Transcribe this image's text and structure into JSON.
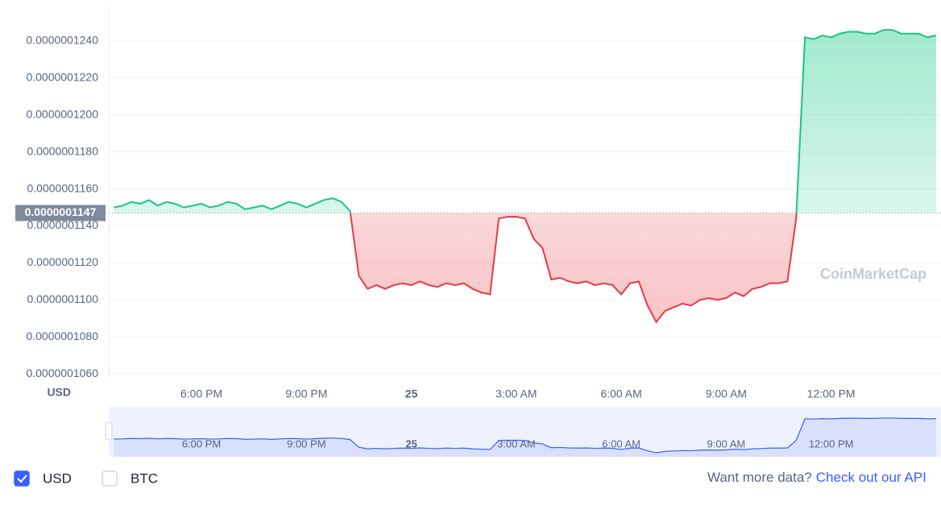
{
  "chart_data": {
    "type": "line",
    "y_axis_unit": "USD",
    "xlim": [
      15.35,
      39.14
    ],
    "xticks": [
      {
        "value": 18,
        "label": "6:00 PM"
      },
      {
        "value": 21,
        "label": "9:00 PM"
      },
      {
        "value": 24,
        "label": "25"
      },
      {
        "value": 27,
        "label": "3:00 AM"
      },
      {
        "value": 30,
        "label": "6:00 AM"
      },
      {
        "value": 33,
        "label": "9:00 AM"
      },
      {
        "value": 36,
        "label": "12:00 PM"
      }
    ],
    "ylim": [
      1.057e-07,
      1.26e-07
    ],
    "yticks": [
      {
        "value": 1.06e-07,
        "label": "0.0000001060"
      },
      {
        "value": 1.08e-07,
        "label": "0.0000001080"
      },
      {
        "value": 1.1e-07,
        "label": "0.0000001100"
      },
      {
        "value": 1.12e-07,
        "label": "0.0000001120"
      },
      {
        "value": 1.14e-07,
        "label": "0.0000001140"
      },
      {
        "value": 1.16e-07,
        "label": "0.0000001160"
      },
      {
        "value": 1.18e-07,
        "label": "0.0000001180"
      },
      {
        "value": 1.2e-07,
        "label": "0.0000001200"
      },
      {
        "value": 1.22e-07,
        "label": "0.0000001220"
      },
      {
        "value": 1.24e-07,
        "label": "0.0000001240"
      }
    ],
    "grid": true,
    "reference_price": {
      "value": 1.147e-07,
      "label": "0.0000001147"
    },
    "up_color": "#16c784",
    "down_color": "#ea3943",
    "navigator_color": "#3861fb",
    "watermark": "CoinMarketCap",
    "x": [
      15.5,
      15.75,
      16,
      16.25,
      16.5,
      16.75,
      17,
      17.25,
      17.5,
      17.75,
      18,
      18.25,
      18.5,
      18.75,
      19,
      19.25,
      19.5,
      19.75,
      20,
      20.25,
      20.5,
      20.75,
      21,
      21.25,
      21.5,
      21.75,
      22,
      22.25,
      22.5,
      22.75,
      23,
      23.25,
      23.5,
      23.75,
      24,
      24.25,
      24.5,
      24.75,
      25,
      25.25,
      25.5,
      25.75,
      26,
      26.25,
      26.5,
      26.75,
      27,
      27.25,
      27.5,
      27.75,
      28,
      28.25,
      28.5,
      28.75,
      29,
      29.25,
      29.5,
      29.75,
      30,
      30.25,
      30.5,
      30.75,
      31,
      31.25,
      31.5,
      31.75,
      32,
      32.25,
      32.5,
      32.75,
      33,
      33.25,
      33.5,
      33.75,
      34,
      34.25,
      34.5,
      34.75,
      35,
      35.25,
      35.5,
      35.75,
      36,
      36.25,
      36.5,
      36.75,
      37,
      37.25,
      37.5,
      37.75,
      38,
      38.25,
      38.5,
      38.75,
      39
    ],
    "series": [
      {
        "name": "USD",
        "values": [
          1.15e-07,
          1.151e-07,
          1.153e-07,
          1.152e-07,
          1.154e-07,
          1.151e-07,
          1.153e-07,
          1.152e-07,
          1.15e-07,
          1.151e-07,
          1.152e-07,
          1.15e-07,
          1.151e-07,
          1.153e-07,
          1.152e-07,
          1.149e-07,
          1.15e-07,
          1.151e-07,
          1.149e-07,
          1.151e-07,
          1.153e-07,
          1.152e-07,
          1.15e-07,
          1.152e-07,
          1.154e-07,
          1.155e-07,
          1.153e-07,
          1.148e-07,
          1.113e-07,
          1.106e-07,
          1.108e-07,
          1.106e-07,
          1.108e-07,
          1.109e-07,
          1.108e-07,
          1.11e-07,
          1.108e-07,
          1.107e-07,
          1.109e-07,
          1.108e-07,
          1.109e-07,
          1.106e-07,
          1.104e-07,
          1.103e-07,
          1.144e-07,
          1.145e-07,
          1.145e-07,
          1.144e-07,
          1.133e-07,
          1.128e-07,
          1.111e-07,
          1.112e-07,
          1.11e-07,
          1.109e-07,
          1.11e-07,
          1.108e-07,
          1.109e-07,
          1.108e-07,
          1.103e-07,
          1.109e-07,
          1.11e-07,
          1.097e-07,
          1.088e-07,
          1.094e-07,
          1.096e-07,
          1.098e-07,
          1.097e-07,
          1.1e-07,
          1.101e-07,
          1.1e-07,
          1.101e-07,
          1.104e-07,
          1.102e-07,
          1.106e-07,
          1.107e-07,
          1.109e-07,
          1.109e-07,
          1.11e-07,
          1.144e-07,
          1.242e-07,
          1.241e-07,
          1.243e-07,
          1.242e-07,
          1.244e-07,
          1.245e-07,
          1.245e-07,
          1.244e-07,
          1.244e-07,
          1.246e-07,
          1.246e-07,
          1.244e-07,
          1.244e-07,
          1.244e-07,
          1.242e-07,
          1.243e-07
        ]
      }
    ]
  },
  "footer": {
    "currencies": [
      {
        "label": "USD",
        "checked": true
      },
      {
        "label": "BTC",
        "checked": false
      }
    ],
    "prompt": "Want more data?",
    "link": "Check out our API"
  }
}
